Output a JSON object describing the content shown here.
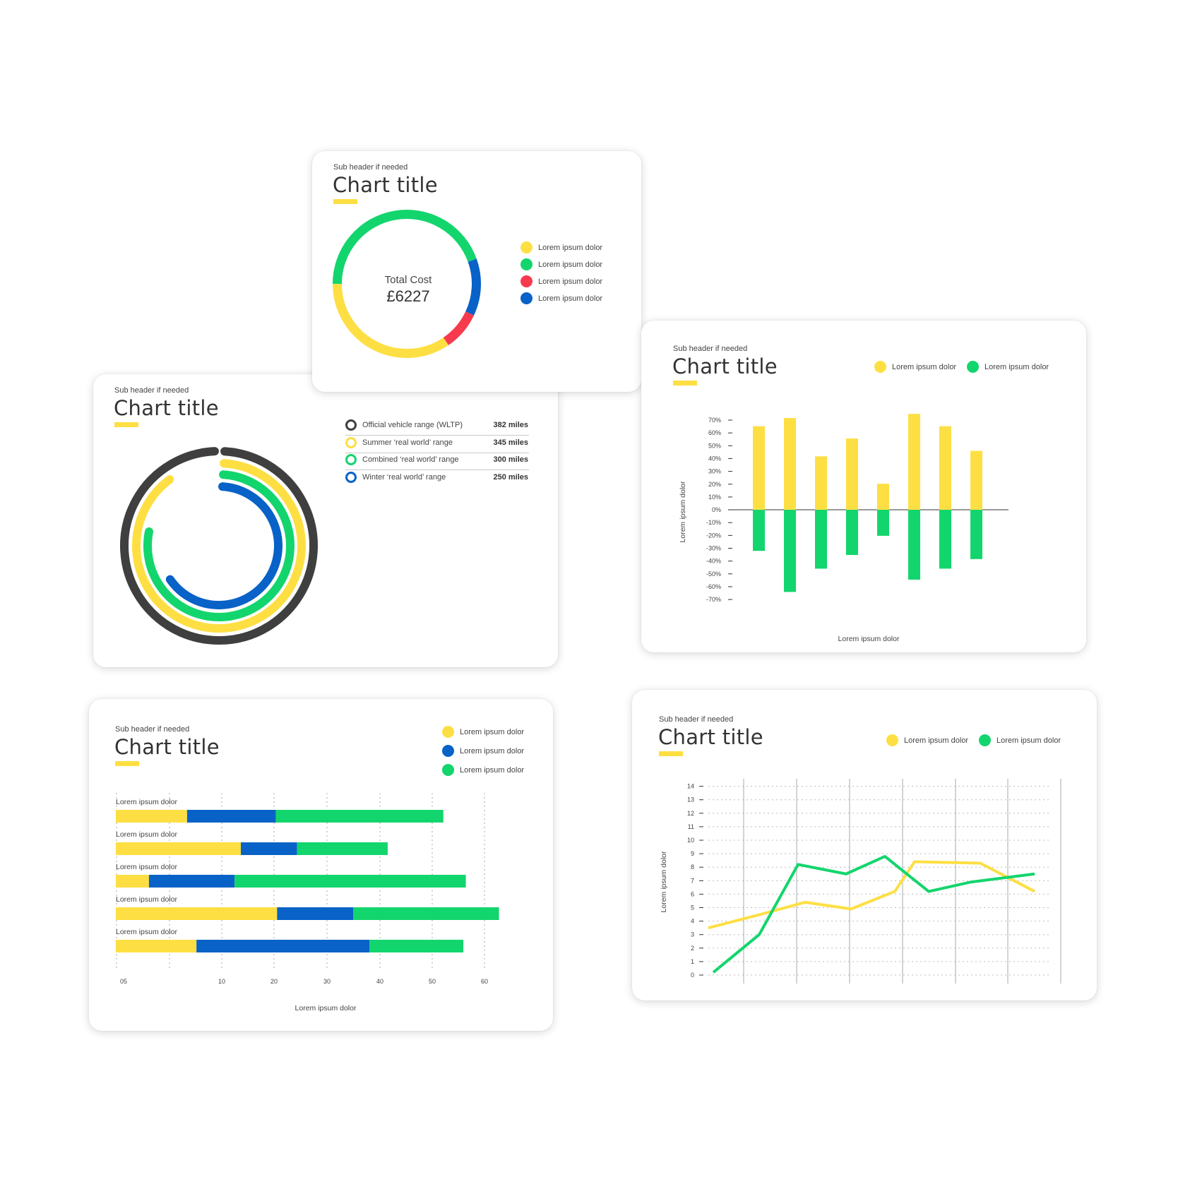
{
  "colors": {
    "yellow": "#fedf43",
    "green": "#13d56d",
    "blue": "#0862c7",
    "red": "#f83a4e",
    "dark": "#3f3f3f"
  },
  "donut": {
    "subheader": "Sub header if needed",
    "title": "Chart title",
    "center_label": "Total Cost",
    "center_value": "£6227",
    "legend": [
      {
        "label": "Lorem ipsum dolor",
        "color": "#fedf43"
      },
      {
        "label": "Lorem ipsum dolor",
        "color": "#13d56d"
      },
      {
        "label": "Lorem ipsum dolor",
        "color": "#f83a4e"
      },
      {
        "label": "Lorem ipsum dolor",
        "color": "#0862c7"
      }
    ]
  },
  "radial": {
    "subheader": "Sub header if needed",
    "title": "Chart title",
    "rows": [
      {
        "label": "Official vehicle range (WLTP)",
        "value": "382 miles",
        "color": "#3f3f3f"
      },
      {
        "label": "Summer ‘real world’ range",
        "value": "345 miles",
        "color": "#fedf43"
      },
      {
        "label": "Combined ‘real world’ range",
        "value": "300 miles",
        "color": "#13d56d"
      },
      {
        "label": "Winter ‘real world’ range",
        "value": "250 miles",
        "color": "#0862c7"
      }
    ]
  },
  "divbar": {
    "subheader": "Sub header if needed",
    "title": "Chart title",
    "legend": [
      {
        "label": "Lorem ipsum dolor",
        "color": "#fedf43"
      },
      {
        "label": "Lorem ipsum dolor",
        "color": "#13d56d"
      }
    ],
    "ylabel": "Lorem ipsum dolor",
    "xlabel": "Lorem ipsum dolor",
    "ticks": [
      "70%",
      "60%",
      "50%",
      "40%",
      "30%",
      "20%",
      "10%",
      "0%",
      "-10%",
      "-20%",
      "-30%",
      "-40%",
      "-50%",
      "-60%",
      "-70%"
    ]
  },
  "hbar": {
    "subheader": "Sub header if needed",
    "title": "Chart title",
    "legend": [
      {
        "label": "Lorem ipsum dolor",
        "color": "#fedf43"
      },
      {
        "label": "Lorem ipsum dolor",
        "color": "#0862c7"
      },
      {
        "label": "Lorem ipsum dolor",
        "color": "#13d56d"
      }
    ],
    "row_labels": [
      "Lorem ipsum dolor",
      "Lorem ipsum dolor",
      "Lorem ipsum dolor",
      "Lorem ipsum dolor",
      "Lorem ipsum dolor"
    ],
    "ticks": [
      "05",
      "10",
      "20",
      "30",
      "40",
      "50",
      "60"
    ],
    "xlabel": "Lorem ipsum dolor"
  },
  "line": {
    "subheader": "Sub header if needed",
    "title": "Chart title",
    "legend": [
      {
        "label": "Lorem ipsum dolor",
        "color": "#fedf43"
      },
      {
        "label": "Lorem ipsum dolor",
        "color": "#13d56d"
      }
    ],
    "ylabel": "Lorem ipsum dolor",
    "ticks": [
      "14",
      "13",
      "12",
      "11",
      "10",
      "9",
      "8",
      "7",
      "6",
      "5",
      "4",
      "3",
      "2",
      "1",
      "0"
    ]
  },
  "chart_data": [
    {
      "type": "pie",
      "title": "Chart title",
      "subtitle": "Sub header if needed",
      "categories": [
        "Lorem ipsum dolor",
        "Lorem ipsum dolor",
        "Lorem ipsum dolor",
        "Lorem ipsum dolor"
      ],
      "values": [
        34.5,
        44.5,
        8.5,
        12.5
      ],
      "colors": [
        "#fedf43",
        "#13d56d",
        "#f83a4e",
        "#0862c7"
      ]
    },
    {
      "type": "bar",
      "variant": "radial",
      "title": "Chart title",
      "subtitle": "Sub header if needed",
      "categories": [
        "Official vehicle range (WLTP)",
        "Summer ‘real world’ range",
        "Combined ‘real world’ range",
        "Winter ‘real world’ range"
      ],
      "values": [
        382,
        345,
        300,
        250
      ],
      "unit": "miles",
      "colors": [
        "#3f3f3f",
        "#fedf43",
        "#13d56d",
        "#0862c7"
      ]
    },
    {
      "type": "bar",
      "title": "Chart title",
      "subtitle": "Sub header if needed",
      "xlabel": "Lorem ipsum dolor",
      "ylabel": "Lorem ipsum dolor",
      "ylim": [
        -70,
        70
      ],
      "series": [
        {
          "name": "Lorem ipsum dolor",
          "color": "#fedf43",
          "values": [
            61,
            67,
            39,
            52,
            19,
            70,
            61,
            43
          ]
        },
        {
          "name": "Lorem ipsum dolor",
          "color": "#13d56d",
          "values": [
            -30,
            -60,
            -43,
            -33,
            -19,
            -51,
            -43,
            -36
          ]
        }
      ]
    },
    {
      "type": "bar",
      "variant": "stacked-horizontal",
      "title": "Chart title",
      "subtitle": "Sub header if needed",
      "xlabel": "Lorem ipsum dolor",
      "categories": [
        "Lorem ipsum dolor",
        "Lorem ipsum dolor",
        "Lorem ipsum dolor",
        "Lorem ipsum dolor",
        "Lorem ipsum dolor"
      ],
      "series": [
        {
          "name": "Lorem ipsum dolor",
          "color": "#fedf43",
          "values": [
            11.4,
            20,
            5.3,
            25.8,
            12.9
          ]
        },
        {
          "name": "Lorem ipsum dolor",
          "color": "#0862c7",
          "values": [
            14.2,
            9,
            13.7,
            12.2,
            27.7
          ]
        },
        {
          "name": "Lorem ipsum dolor",
          "color": "#13d56d",
          "values": [
            26.8,
            14.5,
            37.0,
            23.3,
            15.0
          ]
        }
      ],
      "xlim": [
        0,
        60
      ]
    },
    {
      "type": "line",
      "title": "Chart title",
      "subtitle": "Sub header if needed",
      "ylabel": "Lorem ipsum dolor",
      "ylim": [
        0,
        14
      ],
      "series": [
        {
          "name": "Lorem ipsum dolor",
          "color": "#fedf43",
          "values": [
            3.5,
            4.5,
            5.4,
            4.9,
            6.2,
            8.4,
            8.3,
            6.2
          ]
        },
        {
          "name": "Lorem ipsum dolor",
          "color": "#13d56d",
          "values": [
            0.2,
            3.0,
            8.2,
            7.5,
            8.8,
            6.2,
            6.9,
            7.5
          ]
        }
      ]
    }
  ]
}
